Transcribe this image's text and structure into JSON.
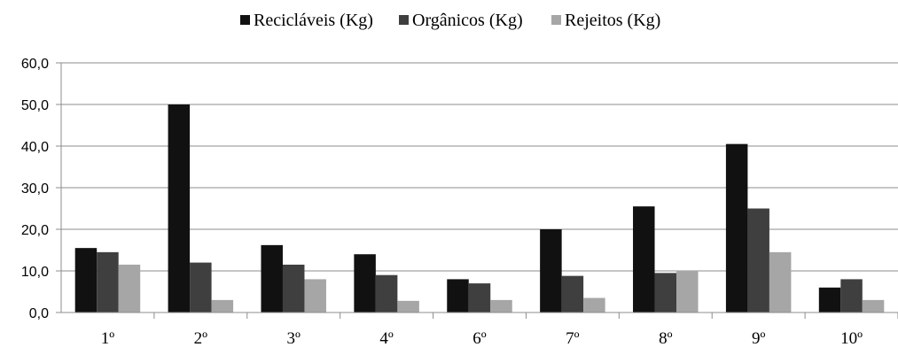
{
  "chart_data": {
    "type": "bar",
    "categories": [
      "1º",
      "2º",
      "3º",
      "4º",
      "6º",
      "7º",
      "8º",
      "9º",
      "10º"
    ],
    "series": [
      {
        "name": "Recicláveis (Kg)",
        "color": "#111111",
        "values": [
          15.5,
          50.0,
          16.2,
          14.0,
          8.0,
          20.0,
          25.5,
          40.5,
          6.0
        ]
      },
      {
        "name": "Orgânicos (Kg)",
        "color": "#3f3f3f",
        "values": [
          14.5,
          12.0,
          11.5,
          9.0,
          7.0,
          8.8,
          9.5,
          25.0,
          8.0
        ]
      },
      {
        "name": "Rejeitos (Kg)",
        "color": "#a6a6a6",
        "values": [
          11.5,
          3.0,
          8.0,
          2.8,
          3.0,
          3.5,
          10.0,
          14.5,
          3.0
        ]
      }
    ],
    "yticks": [
      "0,0",
      "10,0",
      "20,0",
      "30,0",
      "40,0",
      "50,0",
      "60,0"
    ],
    "ylim": [
      0,
      60
    ],
    "grid": true,
    "legend_position": "top-center",
    "title": "",
    "xlabel": "",
    "ylabel": ""
  }
}
